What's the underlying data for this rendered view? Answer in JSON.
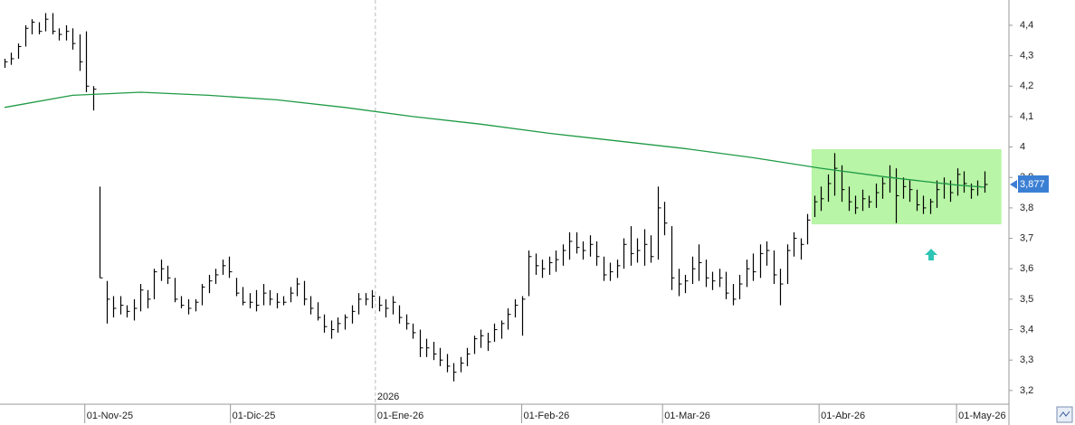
{
  "chart_data": {
    "type": "ohlc",
    "color": "#000000",
    "categories": [
      null,
      null,
      null,
      null,
      null,
      null,
      null,
      null,
      null,
      null,
      null,
      null,
      null,
      null,
      null,
      null,
      null,
      null,
      null,
      null,
      null,
      null,
      null,
      null,
      null,
      null,
      null,
      null,
      null,
      null,
      null,
      null,
      null,
      null,
      null,
      null,
      null,
      null,
      null,
      null,
      null,
      null,
      null,
      null,
      null,
      null,
      null,
      null,
      null,
      null,
      null,
      null,
      null,
      null,
      null,
      null,
      null,
      null,
      null,
      null,
      null,
      null,
      null,
      null,
      null,
      null,
      null,
      null,
      null,
      null,
      null,
      null,
      null,
      null,
      null,
      null,
      null,
      null,
      null,
      null,
      null,
      null,
      null,
      null,
      null,
      null,
      null,
      null,
      null,
      null,
      null,
      null,
      null,
      null,
      null,
      null,
      null,
      null,
      null,
      null,
      null,
      null,
      null,
      null,
      null,
      null,
      null,
      null,
      null,
      null,
      null,
      null,
      null,
      null,
      null,
      null,
      null,
      null,
      null,
      null,
      null,
      null,
      null,
      null,
      null,
      null,
      null,
      null,
      null,
      null,
      null,
      null,
      null,
      null,
      null,
      null,
      null,
      null,
      null,
      null,
      null,
      null,
      null,
      null,
      null
    ],
    "high": [
      4.29,
      4.31,
      4.34,
      4.4,
      4.42,
      4.41,
      4.44,
      4.44,
      4.39,
      4.4,
      4.39,
      4.37,
      4.38,
      4.2,
      3.87,
      3.56,
      3.51,
      3.51,
      3.48,
      3.5,
      3.55,
      3.53,
      3.6,
      3.63,
      3.61,
      3.57,
      3.51,
      3.5,
      3.5,
      3.55,
      3.58,
      3.6,
      3.63,
      3.64,
      3.57,
      3.54,
      3.52,
      3.53,
      3.55,
      3.53,
      3.52,
      3.51,
      3.54,
      3.57,
      3.56,
      3.51,
      3.49,
      3.45,
      3.43,
      3.44,
      3.45,
      3.48,
      3.52,
      3.52,
      3.53,
      3.51,
      3.5,
      3.51,
      3.48,
      3.45,
      3.42,
      3.4,
      3.37,
      3.36,
      3.34,
      3.32,
      3.29,
      3.31,
      3.34,
      3.38,
      3.4,
      3.39,
      3.42,
      3.43,
      3.47,
      3.5,
      3.51,
      3.66,
      3.65,
      3.63,
      3.64,
      3.66,
      3.68,
      3.72,
      3.72,
      3.69,
      3.71,
      3.69,
      3.64,
      3.62,
      3.63,
      3.7,
      3.74,
      3.7,
      3.73,
      3.71,
      3.87,
      3.82,
      3.74,
      3.6,
      3.58,
      3.64,
      3.68,
      3.63,
      3.59,
      3.6,
      3.59,
      3.55,
      3.58,
      3.63,
      3.65,
      3.68,
      3.69,
      3.66,
      3.6,
      3.68,
      3.72,
      3.7,
      3.78,
      3.84,
      3.87,
      3.91,
      3.98,
      3.94,
      3.87,
      3.84,
      3.86,
      3.84,
      3.88,
      3.9,
      3.94,
      3.93,
      3.9,
      3.89,
      3.86,
      3.84,
      3.83,
      3.89,
      3.9,
      3.89,
      3.93,
      3.92,
      3.88,
      3.89,
      3.92
    ],
    "low": [
      4.26,
      4.27,
      4.29,
      4.33,
      4.37,
      4.37,
      4.38,
      4.37,
      4.35,
      4.35,
      4.32,
      4.25,
      4.18,
      4.12,
      3.57,
      3.42,
      3.44,
      3.45,
      3.44,
      3.43,
      3.46,
      3.47,
      3.5,
      3.56,
      3.55,
      3.49,
      3.47,
      3.45,
      3.46,
      3.48,
      3.52,
      3.55,
      3.58,
      3.57,
      3.51,
      3.48,
      3.47,
      3.46,
      3.48,
      3.48,
      3.47,
      3.48,
      3.49,
      3.51,
      3.48,
      3.45,
      3.43,
      3.39,
      3.37,
      3.39,
      3.4,
      3.42,
      3.45,
      3.48,
      3.47,
      3.46,
      3.44,
      3.45,
      3.42,
      3.4,
      3.37,
      3.31,
      3.31,
      3.3,
      3.28,
      3.26,
      3.23,
      3.26,
      3.28,
      3.32,
      3.34,
      3.33,
      3.36,
      3.37,
      3.4,
      3.44,
      3.38,
      3.51,
      3.58,
      3.57,
      3.58,
      3.59,
      3.61,
      3.63,
      3.65,
      3.63,
      3.64,
      3.61,
      3.56,
      3.56,
      3.57,
      3.6,
      3.61,
      3.62,
      3.61,
      3.62,
      3.63,
      3.71,
      3.53,
      3.51,
      3.52,
      3.55,
      3.56,
      3.54,
      3.53,
      3.54,
      3.5,
      3.48,
      3.5,
      3.54,
      3.56,
      3.57,
      3.61,
      3.55,
      3.48,
      3.55,
      3.64,
      3.63,
      3.68,
      3.77,
      3.79,
      3.82,
      3.84,
      3.82,
      3.79,
      3.78,
      3.79,
      3.8,
      3.8,
      3.83,
      3.85,
      3.75,
      3.83,
      3.82,
      3.79,
      3.78,
      3.78,
      3.8,
      3.83,
      3.82,
      3.84,
      3.85,
      3.83,
      3.84,
      3.85
    ],
    "close": [
      4.28,
      4.29,
      4.33,
      4.39,
      4.41,
      4.38,
      4.42,
      4.38,
      4.37,
      4.38,
      4.34,
      4.28,
      4.2,
      4.19,
      3.57,
      3.5,
      3.47,
      3.48,
      3.46,
      3.47,
      3.53,
      3.5,
      3.59,
      3.6,
      3.57,
      3.5,
      3.48,
      3.47,
      3.49,
      3.54,
      3.56,
      3.58,
      3.61,
      3.59,
      3.52,
      3.49,
      3.49,
      3.48,
      3.52,
      3.5,
      3.49,
      3.49,
      3.52,
      3.55,
      3.5,
      3.47,
      3.44,
      3.41,
      3.4,
      3.42,
      3.44,
      3.46,
      3.5,
      3.5,
      3.51,
      3.48,
      3.47,
      3.49,
      3.44,
      3.42,
      3.39,
      3.34,
      3.34,
      3.32,
      3.3,
      3.28,
      3.26,
      3.29,
      3.32,
      3.37,
      3.38,
      3.36,
      3.4,
      3.42,
      3.45,
      3.48,
      3.5,
      3.64,
      3.61,
      3.6,
      3.62,
      3.63,
      3.66,
      3.69,
      3.67,
      3.66,
      3.68,
      3.64,
      3.58,
      3.59,
      3.61,
      3.68,
      3.65,
      3.66,
      3.68,
      3.64,
      3.8,
      3.75,
      3.57,
      3.55,
      3.56,
      3.6,
      3.62,
      3.57,
      3.56,
      3.57,
      3.52,
      3.5,
      3.55,
      3.6,
      3.59,
      3.65,
      3.66,
      3.58,
      3.55,
      3.66,
      3.7,
      3.68,
      3.76,
      3.82,
      3.83,
      3.88,
      3.93,
      3.86,
      3.82,
      3.8,
      3.83,
      3.82,
      3.85,
      3.88,
      3.9,
      3.84,
      3.87,
      3.86,
      3.81,
      3.8,
      3.82,
      3.86,
      3.88,
      3.85,
      3.91,
      3.88,
      3.86,
      3.87,
      3.877
    ],
    "moving_average": {
      "color": "#1f9a45",
      "x": [
        0,
        10,
        20,
        30,
        40,
        50,
        60,
        70,
        80,
        90,
        100,
        110,
        120,
        130,
        140,
        144
      ],
      "values": [
        4.13,
        4.17,
        4.18,
        4.17,
        4.155,
        4.13,
        4.1,
        4.075,
        4.045,
        4.02,
        3.995,
        3.965,
        3.93,
        3.9,
        3.875,
        3.868
      ]
    },
    "zone": {
      "color": "#b8f5a6",
      "xlim": [
        118.6,
        146.5
      ],
      "ylim": [
        3.746,
        3.993
      ]
    },
    "last_price": {
      "value": 3.877,
      "label": "3,877"
    },
    "year_marker": {
      "value": 54.5,
      "label": "2026"
    },
    "xlim": [
      -0.66,
      147.6
    ],
    "ylim": [
      3.155,
      4.483
    ],
    "xticks": [
      {
        "value": 11.8,
        "label": "01-Nov-25"
      },
      {
        "value": 33.2,
        "label": "01-Dic-25"
      },
      {
        "value": 54.5,
        "label": "01-Ene-26"
      },
      {
        "value": 76,
        "label": "01-Feb-26"
      },
      {
        "value": 96.7,
        "label": "01-Mar-26"
      },
      {
        "value": 119.7,
        "label": "01-Abr-26"
      },
      {
        "value": 139.9,
        "label": "01-May-26"
      }
    ],
    "yticks": [
      {
        "value": 3.2,
        "label": "3,2"
      },
      {
        "value": 3.3,
        "label": "3,3"
      },
      {
        "value": 3.4,
        "label": "3,4"
      },
      {
        "value": 3.5,
        "label": "3,5"
      },
      {
        "value": 3.6,
        "label": "3,6"
      },
      {
        "value": 3.7,
        "label": "3,7"
      },
      {
        "value": 3.8,
        "label": "3,8"
      },
      {
        "value": 3.9,
        "label": "3,9"
      },
      {
        "value": 4.0,
        "label": "4"
      },
      {
        "value": 4.1,
        "label": "4,1"
      },
      {
        "value": 4.2,
        "label": "4,2"
      },
      {
        "value": 4.3,
        "label": "4,3"
      },
      {
        "value": 4.4,
        "label": "4,4"
      }
    ]
  }
}
